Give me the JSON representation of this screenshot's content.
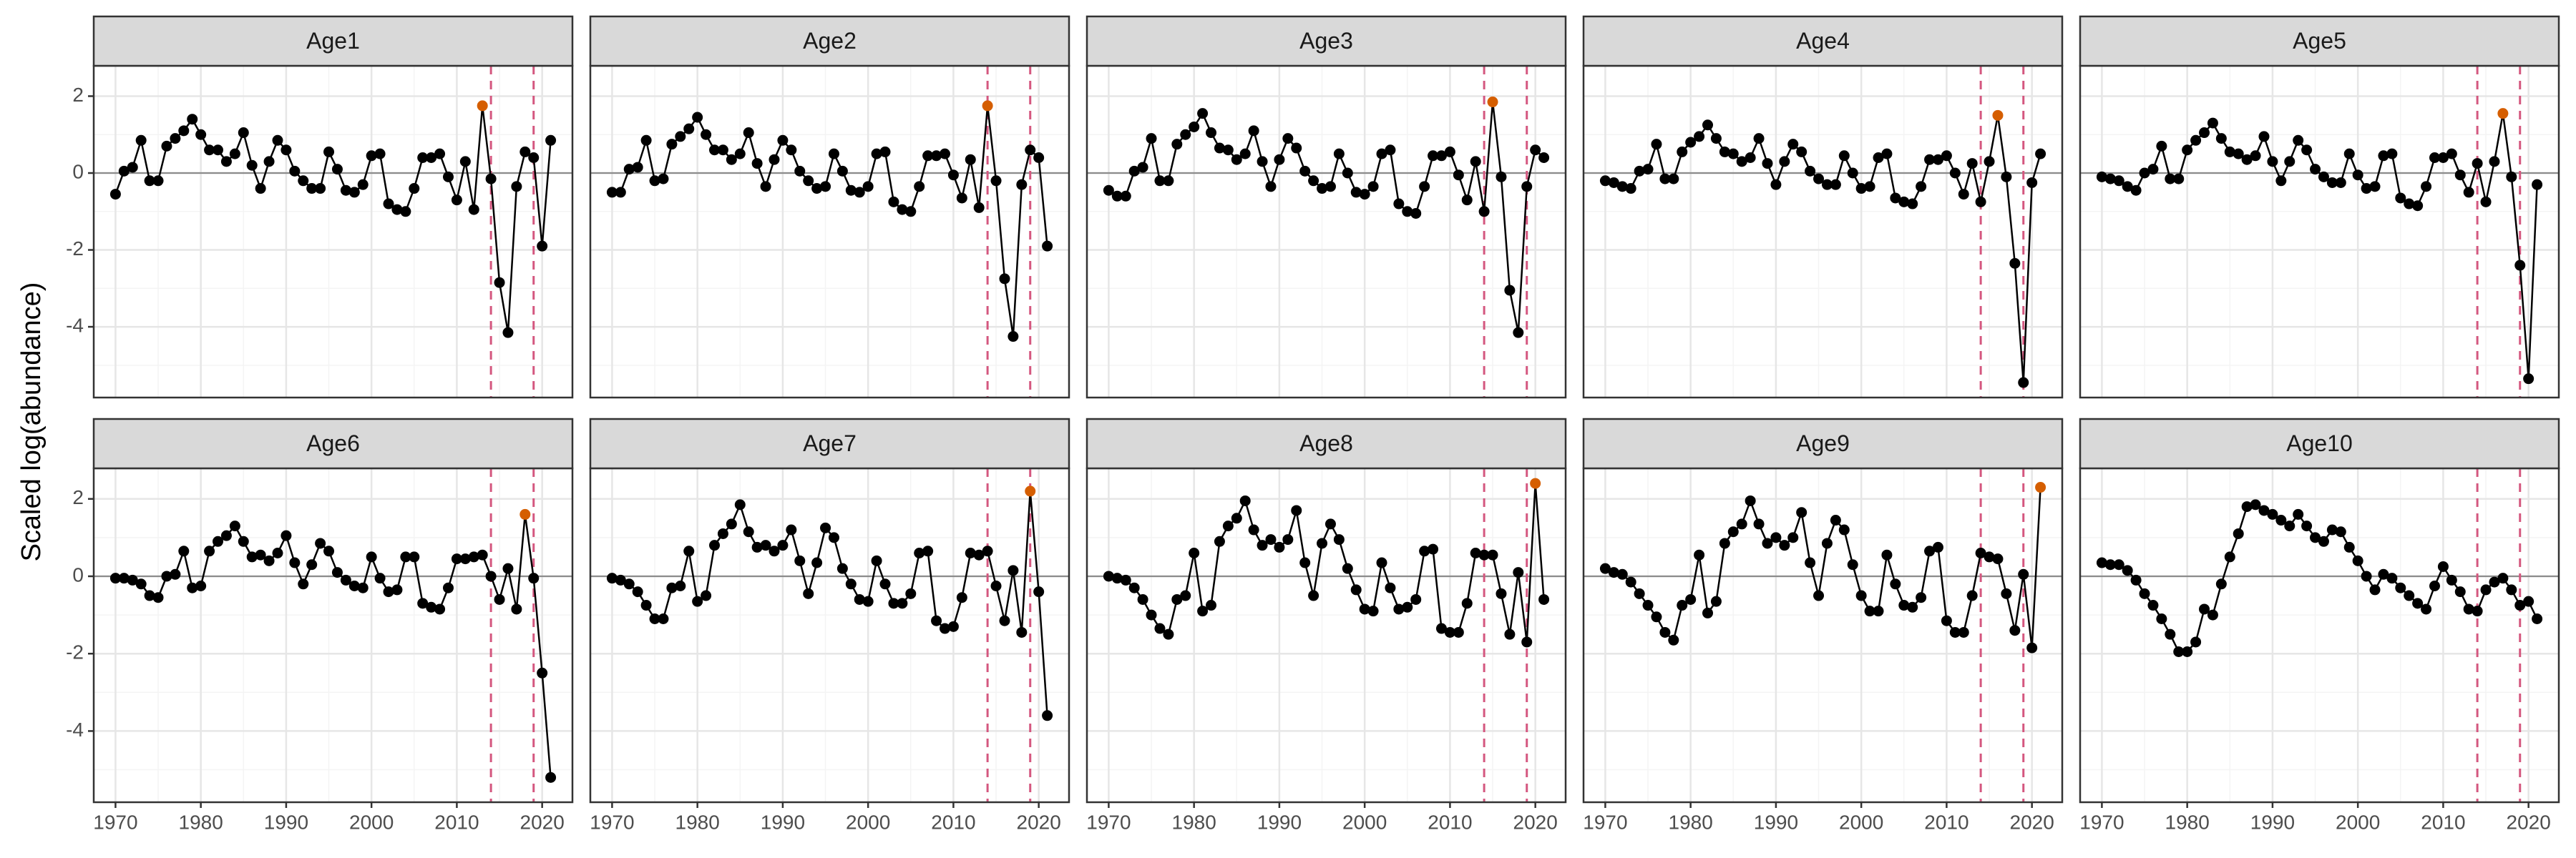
{
  "chart_data": {
    "type": "line",
    "ylabel": "Scaled log(abundance)",
    "x": [
      1970,
      1971,
      1972,
      1973,
      1974,
      1975,
      1976,
      1977,
      1978,
      1979,
      1980,
      1981,
      1982,
      1983,
      1984,
      1985,
      1986,
      1987,
      1988,
      1989,
      1990,
      1991,
      1992,
      1993,
      1994,
      1995,
      1996,
      1997,
      1998,
      1999,
      2000,
      2001,
      2002,
      2003,
      2004,
      2005,
      2006,
      2007,
      2008,
      2009,
      2010,
      2011,
      2012,
      2013,
      2014,
      2015,
      2016,
      2017,
      2018,
      2019,
      2020,
      2021
    ],
    "xlim": [
      1967.45,
      2023.55
    ],
    "xticks": [
      1970,
      1980,
      1990,
      2000,
      2010,
      2020
    ],
    "xminor": [
      1975,
      1985,
      1995,
      2005,
      2015
    ],
    "ylim": [
      -5.84,
      2.79
    ],
    "yticks": [
      -4,
      -2,
      0,
      2
    ],
    "yminor": [
      -5,
      -3,
      -1,
      1
    ],
    "grid": true,
    "hline": 0,
    "vlines": [
      2014,
      2019
    ],
    "vline_color": "#d4577f",
    "color": "#000000",
    "highlight_color": "#d55e00",
    "panels": [
      {
        "title": "Age1",
        "highlight": 2013,
        "values": [
          -0.55,
          0.05,
          0.15,
          0.85,
          -0.2,
          -0.2,
          0.7,
          0.9,
          1.1,
          1.4,
          1.0,
          0.6,
          0.6,
          0.3,
          0.5,
          1.05,
          0.2,
          -0.4,
          0.3,
          0.85,
          0.6,
          0.05,
          -0.2,
          -0.4,
          -0.4,
          0.55,
          0.1,
          -0.45,
          -0.5,
          -0.3,
          0.45,
          0.5,
          -0.8,
          -0.95,
          -1.0,
          -0.4,
          0.4,
          0.4,
          0.5,
          -0.1,
          -0.7,
          0.3,
          -0.95,
          1.75,
          -0.15,
          -2.85,
          -4.15,
          -0.35,
          0.55,
          0.4,
          -1.9,
          0.85
        ]
      },
      {
        "title": "Age2",
        "highlight": 2014,
        "values": [
          -0.5,
          -0.5,
          0.1,
          0.15,
          0.85,
          -0.2,
          -0.15,
          0.75,
          0.95,
          1.15,
          1.45,
          1.0,
          0.6,
          0.6,
          0.35,
          0.5,
          1.05,
          0.25,
          -0.35,
          0.35,
          0.85,
          0.6,
          0.05,
          -0.2,
          -0.4,
          -0.35,
          0.5,
          0.05,
          -0.45,
          -0.5,
          -0.35,
          0.5,
          0.55,
          -0.75,
          -0.95,
          -1.0,
          -0.35,
          0.45,
          0.45,
          0.5,
          -0.05,
          -0.65,
          0.35,
          -0.9,
          1.75,
          -0.2,
          -2.75,
          -4.25,
          -0.3,
          0.6,
          0.4,
          -1.9
        ]
      },
      {
        "title": "Age3",
        "highlight": 2015,
        "values": [
          -0.45,
          -0.6,
          -0.6,
          0.05,
          0.15,
          0.9,
          -0.2,
          -0.2,
          0.75,
          1.0,
          1.2,
          1.55,
          1.05,
          0.65,
          0.6,
          0.35,
          0.5,
          1.1,
          0.3,
          -0.35,
          0.35,
          0.9,
          0.65,
          0.05,
          -0.2,
          -0.4,
          -0.35,
          0.5,
          0.0,
          -0.5,
          -0.55,
          -0.35,
          0.5,
          0.6,
          -0.8,
          -1.0,
          -1.05,
          -0.35,
          0.45,
          0.45,
          0.55,
          -0.05,
          -0.7,
          0.3,
          -1.0,
          1.85,
          -0.1,
          -3.05,
          -4.15,
          -0.35,
          0.6,
          0.4
        ]
      },
      {
        "title": "Age4",
        "highlight": 2016,
        "values": [
          -0.2,
          -0.25,
          -0.35,
          -0.4,
          0.05,
          0.1,
          0.75,
          -0.15,
          -0.15,
          0.55,
          0.8,
          0.95,
          1.25,
          0.9,
          0.55,
          0.5,
          0.3,
          0.4,
          0.9,
          0.25,
          -0.3,
          0.3,
          0.75,
          0.55,
          0.05,
          -0.15,
          -0.3,
          -0.3,
          0.45,
          0.0,
          -0.4,
          -0.35,
          0.4,
          0.5,
          -0.65,
          -0.75,
          -0.8,
          -0.35,
          0.35,
          0.35,
          0.45,
          0.0,
          -0.55,
          0.25,
          -0.75,
          0.3,
          1.5,
          -0.1,
          -2.35,
          -5.45,
          -0.25,
          0.5
        ]
      },
      {
        "title": "Age5",
        "highlight": 2017,
        "values": [
          -0.1,
          -0.15,
          -0.2,
          -0.35,
          -0.45,
          0.0,
          0.1,
          0.7,
          -0.15,
          -0.15,
          0.6,
          0.85,
          1.05,
          1.3,
          0.9,
          0.55,
          0.5,
          0.35,
          0.45,
          0.95,
          0.3,
          -0.2,
          0.3,
          0.85,
          0.6,
          0.1,
          -0.1,
          -0.25,
          -0.25,
          0.5,
          -0.05,
          -0.4,
          -0.35,
          0.45,
          0.5,
          -0.65,
          -0.8,
          -0.85,
          -0.35,
          0.4,
          0.4,
          0.5,
          -0.05,
          -0.5,
          0.25,
          -0.75,
          0.3,
          1.55,
          -0.1,
          -2.4,
          -5.35,
          -0.3
        ]
      },
      {
        "title": "Age6",
        "highlight": 2018,
        "values": [
          -0.05,
          -0.05,
          -0.1,
          -0.2,
          -0.5,
          -0.55,
          0.0,
          0.05,
          0.65,
          -0.3,
          -0.25,
          0.65,
          0.9,
          1.05,
          1.3,
          0.9,
          0.5,
          0.55,
          0.4,
          0.6,
          1.05,
          0.35,
          -0.2,
          0.3,
          0.85,
          0.65,
          0.1,
          -0.1,
          -0.25,
          -0.3,
          0.5,
          -0.05,
          -0.4,
          -0.35,
          0.5,
          0.5,
          -0.7,
          -0.8,
          -0.85,
          -0.3,
          0.45,
          0.45,
          0.5,
          0.55,
          0.0,
          -0.6,
          0.2,
          -0.85,
          1.6,
          -0.05,
          -2.5,
          -5.2
        ]
      },
      {
        "title": "Age7",
        "highlight": 2019,
        "values": [
          -0.05,
          -0.1,
          -0.2,
          -0.4,
          -0.75,
          -1.1,
          -1.1,
          -0.3,
          -0.25,
          0.65,
          -0.65,
          -0.5,
          0.8,
          1.1,
          1.35,
          1.85,
          1.15,
          0.75,
          0.8,
          0.65,
          0.8,
          1.2,
          0.4,
          -0.45,
          0.35,
          1.25,
          1.0,
          0.2,
          -0.2,
          -0.6,
          -0.65,
          0.4,
          -0.2,
          -0.7,
          -0.7,
          -0.45,
          0.6,
          0.65,
          -1.15,
          -1.35,
          -1.3,
          -0.55,
          0.6,
          0.55,
          0.65,
          -0.25,
          -1.15,
          0.15,
          -1.45,
          2.2,
          -0.4,
          -3.6
        ]
      },
      {
        "title": "Age8",
        "highlight": 2020,
        "values": [
          0.0,
          -0.05,
          -0.1,
          -0.3,
          -0.6,
          -1.0,
          -1.35,
          -1.5,
          -0.6,
          -0.5,
          0.6,
          -0.9,
          -0.75,
          0.9,
          1.3,
          1.5,
          1.95,
          1.2,
          0.8,
          0.95,
          0.75,
          0.95,
          1.7,
          0.35,
          -0.5,
          0.85,
          1.35,
          0.95,
          0.2,
          -0.35,
          -0.85,
          -0.9,
          0.35,
          -0.3,
          -0.85,
          -0.8,
          -0.6,
          0.65,
          0.7,
          -1.35,
          -1.45,
          -1.45,
          -0.7,
          0.6,
          0.55,
          0.55,
          -0.45,
          -1.5,
          0.1,
          -1.7,
          2.4,
          -0.6
        ]
      },
      {
        "title": "Age9",
        "highlight": 2021,
        "values": [
          0.2,
          0.1,
          0.05,
          -0.15,
          -0.45,
          -0.75,
          -1.05,
          -1.45,
          -1.65,
          -0.75,
          -0.6,
          0.55,
          -0.95,
          -0.65,
          0.85,
          1.15,
          1.35,
          1.95,
          1.35,
          0.85,
          1.0,
          0.8,
          1.0,
          1.65,
          0.35,
          -0.5,
          0.85,
          1.45,
          1.2,
          0.3,
          -0.5,
          -0.9,
          -0.9,
          0.55,
          -0.2,
          -0.75,
          -0.8,
          -0.55,
          0.65,
          0.75,
          -1.15,
          -1.45,
          -1.45,
          -0.5,
          0.6,
          0.5,
          0.45,
          -0.45,
          -1.4,
          0.05,
          -1.85,
          2.3
        ]
      },
      {
        "title": "Age10",
        "values": [
          0.35,
          0.3,
          0.3,
          0.15,
          -0.1,
          -0.45,
          -0.75,
          -1.1,
          -1.5,
          -1.95,
          -1.95,
          -1.7,
          -0.85,
          -1.0,
          -0.2,
          0.5,
          1.1,
          1.8,
          1.85,
          1.7,
          1.6,
          1.45,
          1.3,
          1.6,
          1.3,
          1.0,
          0.9,
          1.2,
          1.15,
          0.75,
          0.4,
          0.0,
          -0.35,
          0.05,
          -0.05,
          -0.3,
          -0.5,
          -0.7,
          -0.85,
          -0.25,
          0.25,
          -0.1,
          -0.4,
          -0.85,
          -0.9,
          -0.35,
          -0.15,
          -0.05,
          -0.35,
          -0.75,
          -0.65,
          -1.1
        ]
      }
    ]
  }
}
